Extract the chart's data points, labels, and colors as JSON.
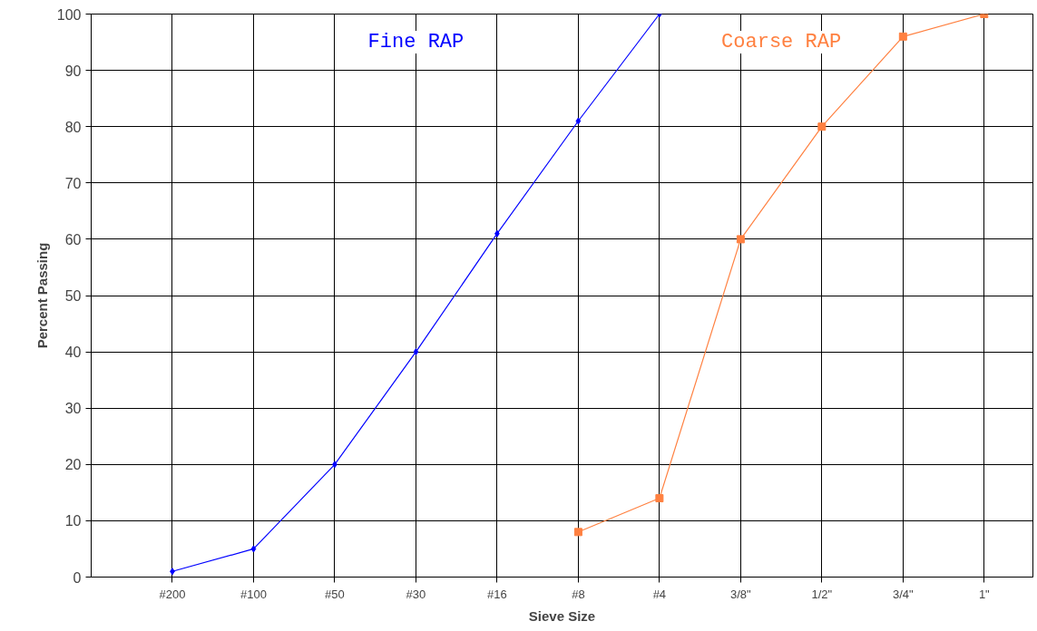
{
  "chart_data": {
    "type": "line",
    "xlabel": "Sieve Size",
    "ylabel": "Percent Passing",
    "categories": [
      "#200",
      "#100",
      "#50",
      "#30",
      "#16",
      "#8",
      "#4",
      "3/8\"",
      "1/2\"",
      "3/4\"",
      "1\""
    ],
    "ylim": [
      0,
      100
    ],
    "yticks": [
      0,
      10,
      20,
      30,
      40,
      50,
      60,
      70,
      80,
      90,
      100
    ],
    "grid": true,
    "series": [
      {
        "name": "Fine RAP",
        "color": "#0000ff",
        "marker": "diamond",
        "values": [
          1,
          5,
          20,
          40,
          61,
          81,
          100,
          null,
          null,
          null,
          null
        ]
      },
      {
        "name": "Coarse RAP",
        "color": "#ff8040",
        "marker": "square",
        "values": [
          null,
          null,
          null,
          null,
          null,
          8,
          14,
          60,
          80,
          96,
          100
        ]
      }
    ]
  }
}
